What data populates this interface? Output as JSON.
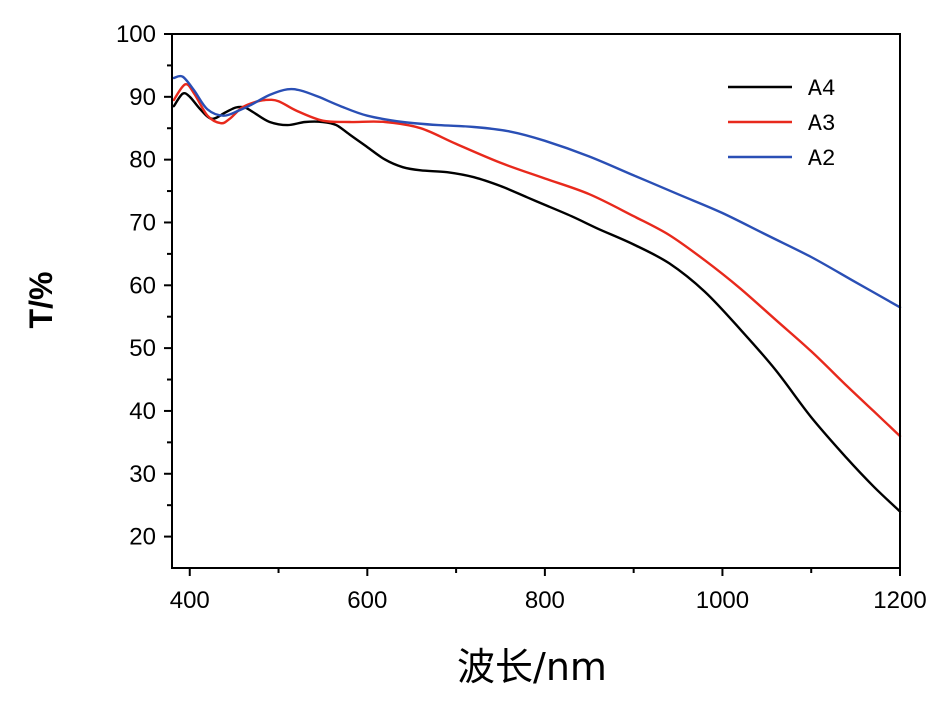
{
  "chart_data": {
    "type": "line",
    "title": "",
    "xlabel": "波长/nm",
    "ylabel": "T/%",
    "xlim": [
      380,
      1200
    ],
    "ylim": [
      15,
      100
    ],
    "x_ticks": [
      400,
      600,
      800,
      1000,
      1200
    ],
    "y_ticks": [
      20,
      30,
      40,
      50,
      60,
      70,
      80,
      90,
      100
    ],
    "grid": false,
    "legend_position": "top-right",
    "series": [
      {
        "name": "A4",
        "color": "#000000",
        "x": [
          382,
          392,
          400,
          412,
          425,
          440,
          452,
          462,
          472,
          490,
          510,
          530,
          550,
          565,
          580,
          600,
          620,
          640,
          660,
          690,
          720,
          750,
          780,
          800,
          830,
          860,
          900,
          940,
          980,
          1020,
          1060,
          1100,
          1140,
          1170,
          1200
        ],
        "y": [
          88.5,
          90.5,
          90,
          88,
          86.5,
          87.5,
          88.3,
          88.3,
          87.5,
          86,
          85.5,
          86,
          86,
          85.5,
          84,
          82,
          80,
          78.8,
          78.3,
          78,
          77.2,
          75.8,
          74,
          72.8,
          71,
          69,
          66.5,
          63.5,
          59,
          53,
          46.5,
          39,
          32.5,
          28,
          24
        ]
      },
      {
        "name": "A3",
        "color": "#e8291c",
        "x": [
          382,
          395,
          405,
          420,
          435,
          445,
          458,
          470,
          485,
          500,
          520,
          550,
          580,
          620,
          660,
          700,
          750,
          800,
          850,
          900,
          940,
          980,
          1020,
          1060,
          1100,
          1140,
          1170,
          1200
        ],
        "y": [
          89.5,
          92,
          90.5,
          87,
          85.8,
          86.5,
          88.2,
          89,
          89.5,
          89.3,
          87.8,
          86.2,
          86,
          86,
          85,
          82.5,
          79.5,
          77,
          74.5,
          71,
          68,
          64,
          59.5,
          54.5,
          49.5,
          44,
          40,
          36
        ]
      },
      {
        "name": "A2",
        "color": "#2a4fb5",
        "x": [
          382,
          392,
          405,
          420,
          438,
          455,
          470,
          490,
          510,
          525,
          545,
          570,
          600,
          640,
          680,
          720,
          760,
          800,
          850,
          900,
          950,
          1000,
          1050,
          1100,
          1150,
          1200
        ],
        "y": [
          93,
          93.2,
          91,
          88,
          87,
          87.8,
          88.8,
          90.3,
          91.2,
          91,
          90,
          88.5,
          87,
          86,
          85.5,
          85.2,
          84.5,
          83,
          80.5,
          77.5,
          74.5,
          71.5,
          68,
          64.5,
          60.5,
          56.5
        ]
      }
    ]
  }
}
